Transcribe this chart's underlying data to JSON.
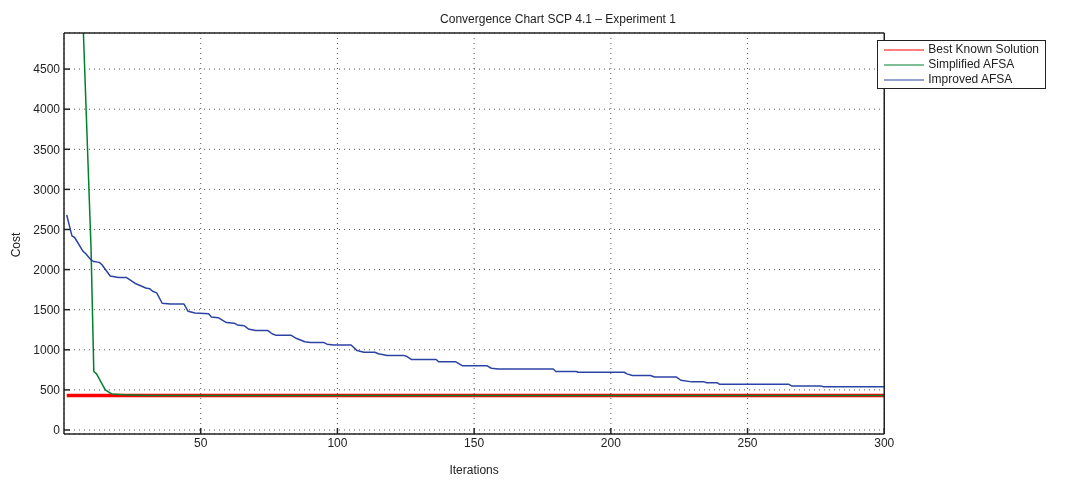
{
  "chart_data": {
    "type": "line",
    "title": "Convergence Chart SCP 4.1 – Experiment 1",
    "xlabel": "Iterations",
    "ylabel": "Cost",
    "xlim": [
      0,
      300
    ],
    "ylim": [
      -50,
      4950
    ],
    "xticks": [
      50,
      100,
      150,
      200,
      250,
      300
    ],
    "yticks": [
      0,
      500,
      1000,
      1500,
      2000,
      2500,
      3000,
      3500,
      4000,
      4500
    ],
    "grid": true,
    "legend": "top right",
    "marker": "none",
    "line_style": "solid",
    "series": [
      {
        "name": "Best Known Solution",
        "color": "#ff0000",
        "x": [
          1,
          300
        ],
        "values": [
          430,
          430
        ]
      },
      {
        "name": "Simplified AFSA",
        "color": "#00802f",
        "x": [
          7.1,
          9.9,
          10.9,
          11.9,
          15.1,
          17.4,
          22,
          30,
          40,
          300
        ],
        "values": [
          4950,
          2250,
          730,
          700,
          500,
          450,
          440,
          430,
          430,
          430
        ]
      },
      {
        "name": "Improved AFSA",
        "color": "#2b44a3",
        "x": [
          1,
          2.1,
          2.9,
          3.9,
          6.9,
          7.9,
          9.9,
          10.9,
          12.9,
          13.9,
          16.9,
          19.9,
          22.9,
          25.9,
          29.9,
          31.4,
          32.4,
          33.9,
          35.9,
          38.9,
          43.9,
          45.4,
          47.9,
          52.9,
          53.9,
          56.4,
          59.4,
          62.4,
          63.4,
          65.9,
          67.4,
          70.1,
          74.6,
          76.1,
          77.6,
          83.1,
          85.1,
          88.1,
          90.1,
          95.1,
          96.2,
          98.7,
          105,
          107.2,
          109.7,
          113.7,
          115,
          118.2,
          124.2,
          125.2,
          127,
          136.1,
          137,
          143.3,
          145.8,
          154.8,
          156.3,
          158.8,
          178.9,
          179.9,
          187.4,
          187.9,
          204.9,
          205.9,
          207.9,
          214.5,
          216,
          224,
          225.6,
          229.6,
          234.1,
          235.1,
          238.8,
          239.8,
          265.1,
          266.1,
          276.7,
          277.7,
          300
        ],
        "values": [
          2680,
          2530,
          2420,
          2400,
          2230,
          2200,
          2120,
          2100,
          2090,
          2060,
          1920,
          1900,
          1900,
          1830,
          1770,
          1760,
          1730,
          1710,
          1580,
          1570,
          1570,
          1480,
          1460,
          1450,
          1410,
          1400,
          1340,
          1330,
          1310,
          1300,
          1260,
          1240,
          1240,
          1200,
          1180,
          1180,
          1140,
          1100,
          1090,
          1090,
          1070,
          1060,
          1060,
          990,
          970,
          970,
          950,
          930,
          930,
          920,
          880,
          880,
          850,
          850,
          800,
          800,
          770,
          760,
          760,
          730,
          730,
          720,
          720,
          700,
          680,
          680,
          660,
          660,
          620,
          600,
          600,
          590,
          590,
          570,
          570,
          550,
          550,
          540,
          540
        ]
      }
    ]
  }
}
